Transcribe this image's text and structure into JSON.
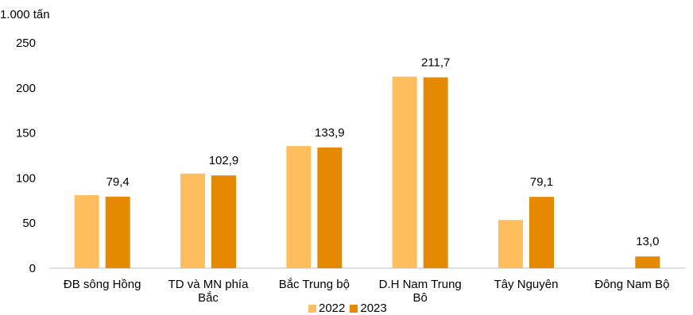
{
  "chart_data": {
    "type": "bar",
    "unit_label": "1.000 tấn",
    "categories": [
      [
        "ĐB sông Hồng"
      ],
      [
        "TD và MN phía",
        "Bắc"
      ],
      [
        "Bắc Trung bộ"
      ],
      [
        "D.H Nam Trung",
        "Bộ"
      ],
      [
        "Tây Nguyên"
      ],
      [
        "Đông Nam Bộ"
      ]
    ],
    "series": [
      {
        "name": "2022",
        "color": "#FFBE5E",
        "values": [
          81,
          105,
          135.5,
          212.5,
          53.5,
          0
        ]
      },
      {
        "name": "2023",
        "color": "#E58A00",
        "values": [
          79.4,
          102.9,
          133.9,
          211.7,
          79.1,
          13.0
        ]
      }
    ],
    "data_labels": [
      "79,4",
      "102,9",
      "133,9",
      "211,7",
      "79,1",
      "13,0"
    ],
    "y_ticks": [
      "0",
      "50",
      "100",
      "150",
      "200",
      "250"
    ],
    "ylim": [
      0,
      250
    ],
    "grid": false,
    "legend_position": "bottom"
  }
}
